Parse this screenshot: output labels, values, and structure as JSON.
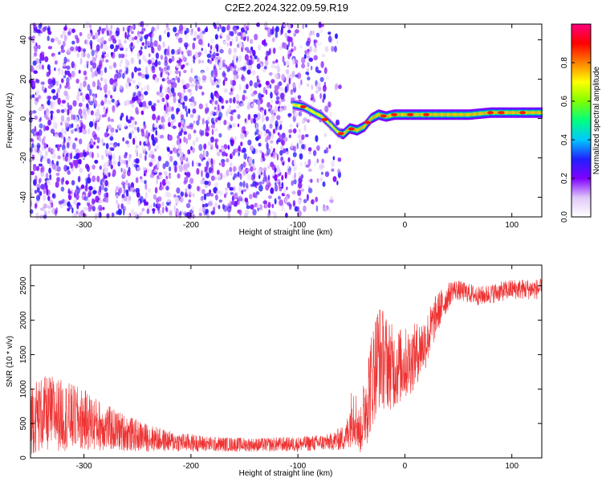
{
  "title": "C2E2.2024.322.09.59.R19",
  "chart_data": [
    {
      "type": "heatmap",
      "xlabel": "Height of straight line (km)",
      "ylabel": "Frequency (Hz)",
      "xlim": [
        -350,
        128
      ],
      "ylim": [
        -50,
        48
      ],
      "x_ticks": [
        -300,
        -200,
        -100,
        0,
        100
      ],
      "y_ticks": [
        -40,
        -20,
        0,
        20,
        40
      ],
      "colorbar": {
        "label": "Normalized spectral amplitude",
        "range": [
          0,
          1
        ],
        "ticks": [
          0.0,
          0.2,
          0.4,
          0.6,
          0.8
        ],
        "colormap": [
          "#ffffff",
          "#e0c8f8",
          "#8000ff",
          "#2020ff",
          "#00c8ff",
          "#00ff80",
          "#80ff00",
          "#ffff00",
          "#ff8000",
          "#ff0000",
          "#ff0080"
        ]
      },
      "noise_region": {
        "x_range": [
          -350,
          -60
        ],
        "amplitude_range": [
          0.05,
          0.3
        ]
      },
      "signal_track": [
        {
          "x": -105,
          "y": 7
        },
        {
          "x": -95,
          "y": 6
        },
        {
          "x": -85,
          "y": 3
        },
        {
          "x": -78,
          "y": 1
        },
        {
          "x": -70,
          "y": -3
        },
        {
          "x": -63,
          "y": -7
        },
        {
          "x": -58,
          "y": -8
        },
        {
          "x": -52,
          "y": -5
        },
        {
          "x": -45,
          "y": -6
        },
        {
          "x": -38,
          "y": -4
        },
        {
          "x": -32,
          "y": 0
        },
        {
          "x": -25,
          "y": 2
        },
        {
          "x": -18,
          "y": 1
        },
        {
          "x": -10,
          "y": 2
        },
        {
          "x": 0,
          "y": 2
        },
        {
          "x": 20,
          "y": 2
        },
        {
          "x": 40,
          "y": 2
        },
        {
          "x": 60,
          "y": 2
        },
        {
          "x": 80,
          "y": 3
        },
        {
          "x": 100,
          "y": 3
        },
        {
          "x": 128,
          "y": 3
        }
      ]
    },
    {
      "type": "line",
      "xlabel": "Height of straight line (km)",
      "ylabel": "SNR (10 * v/v)",
      "xlim": [
        -350,
        128
      ],
      "ylim": [
        0,
        2800
      ],
      "x_ticks": [
        -300,
        -200,
        -100,
        0,
        100
      ],
      "y_ticks": [
        0,
        500,
        1000,
        1500,
        2000,
        2500
      ],
      "series": [
        {
          "color": "#ee3333",
          "envelope": [
            {
              "x": -350,
              "mean": 600,
              "spread": 550
            },
            {
              "x": -330,
              "mean": 650,
              "spread": 550
            },
            {
              "x": -300,
              "mean": 550,
              "spread": 450
            },
            {
              "x": -275,
              "mean": 420,
              "spread": 320
            },
            {
              "x": -250,
              "mean": 320,
              "spread": 230
            },
            {
              "x": -220,
              "mean": 240,
              "spread": 150
            },
            {
              "x": -180,
              "mean": 200,
              "spread": 110
            },
            {
              "x": -140,
              "mean": 190,
              "spread": 100
            },
            {
              "x": -100,
              "mean": 200,
              "spread": 110
            },
            {
              "x": -70,
              "mean": 230,
              "spread": 120
            },
            {
              "x": -55,
              "mean": 300,
              "spread": 200
            },
            {
              "x": -48,
              "mean": 700,
              "spread": 500
            },
            {
              "x": -42,
              "mean": 350,
              "spread": 300
            },
            {
              "x": -35,
              "mean": 900,
              "spread": 700
            },
            {
              "x": -25,
              "mean": 1500,
              "spread": 800
            },
            {
              "x": -10,
              "mean": 1300,
              "spread": 600
            },
            {
              "x": 5,
              "mean": 1400,
              "spread": 500
            },
            {
              "x": 20,
              "mean": 1700,
              "spread": 400
            },
            {
              "x": 30,
              "mean": 2100,
              "spread": 300
            },
            {
              "x": 45,
              "mean": 2450,
              "spread": 150
            },
            {
              "x": 70,
              "mean": 2350,
              "spread": 140
            },
            {
              "x": 100,
              "mean": 2450,
              "spread": 150
            },
            {
              "x": 128,
              "mean": 2450,
              "spread": 150
            }
          ]
        }
      ]
    }
  ]
}
